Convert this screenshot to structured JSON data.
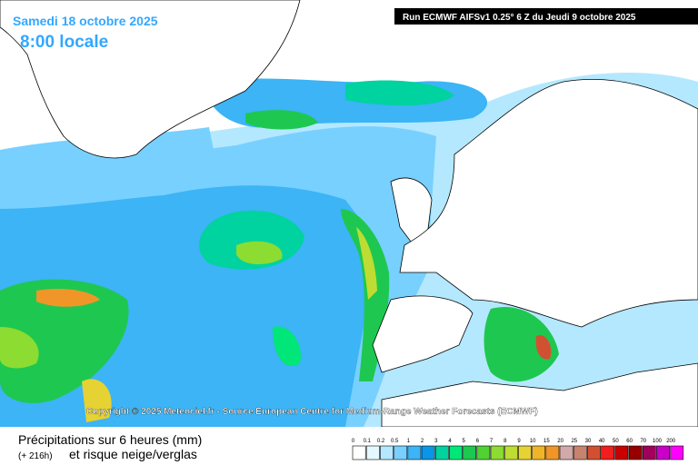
{
  "header": {
    "date": "Samedi 18 octobre 2025",
    "time": "8:00 locale",
    "run": "Run ECMWF AIFSv1 0.25° 6 Z du Jeudi 9 octobre 2025"
  },
  "copyright": "Copyright © 2025 Meteociel.fr - Source European Centre for Medium-Range Weather Forecasts (ECMWF)",
  "footer": {
    "title": "Précipitations sur 6 heures (mm)",
    "lead": "(+ 216h)",
    "subtitle": "et risque neige/verglas"
  },
  "legend": {
    "items": [
      {
        "value": 0,
        "color": "#ffffff"
      },
      {
        "value": 0.1,
        "color": "#e6f8ff"
      },
      {
        "value": 0.2,
        "color": "#b4e8ff"
      },
      {
        "value": 0.5,
        "color": "#78d0ff"
      },
      {
        "value": 1,
        "color": "#3cb4f5"
      },
      {
        "value": 2,
        "color": "#0a96e6"
      },
      {
        "value": 3,
        "color": "#00d2a0"
      },
      {
        "value": 4,
        "color": "#00e678"
      },
      {
        "value": 5,
        "color": "#1ec850"
      },
      {
        "value": 6,
        "color": "#50d232"
      },
      {
        "value": 7,
        "color": "#8cdc32"
      },
      {
        "value": 8,
        "color": "#bedc32"
      },
      {
        "value": 9,
        "color": "#e6d232"
      },
      {
        "value": 10,
        "color": "#f0b428"
      },
      {
        "value": 15,
        "color": "#f09628"
      },
      {
        "value": 20,
        "color": "#d2aaaa"
      },
      {
        "value": 25,
        "color": "#c8826e"
      },
      {
        "value": 30,
        "color": "#d25032"
      },
      {
        "value": 40,
        "color": "#f01e1e"
      },
      {
        "value": 50,
        "color": "#c80000"
      },
      {
        "value": 60,
        "color": "#960000"
      },
      {
        "value": 70,
        "color": "#a0005a"
      },
      {
        "value": 100,
        "color": "#c800c8"
      },
      {
        "value": 200,
        "color": "#ff00ff"
      }
    ]
  }
}
